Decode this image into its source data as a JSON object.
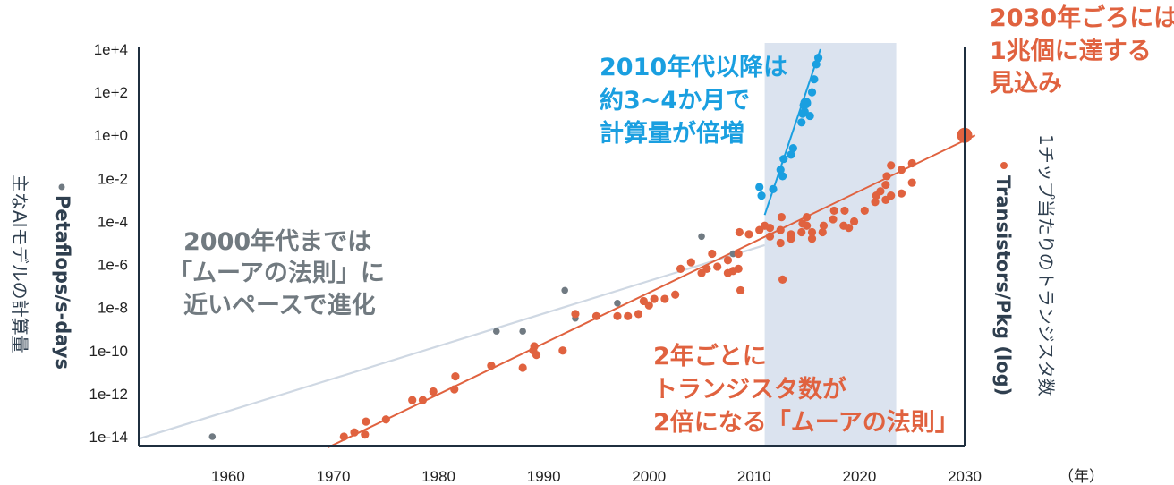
{
  "chart_data": {
    "type": "scatter",
    "x_ticks": [
      "1960",
      "1970",
      "1980",
      "1990",
      "2000",
      "2010",
      "2020",
      "2030"
    ],
    "x_unit_label": "（年）",
    "y_left_ticks": [
      "1e+4",
      "1e+2",
      "1e+0",
      "1e-2",
      "1e-4",
      "1e-6",
      "1e-8",
      "1e-10",
      "1e-12",
      "1e-14"
    ],
    "y_left_label_bold": "Petaflops/s-days",
    "y_left_label_sub": "主なAIモデルの計算量",
    "y_right_label_bold": "Transistors/Pkg (log)",
    "y_right_label_sub": "1チップ当たりのトランジスタ数",
    "xlim": [
      1951.5,
      2030
    ],
    "ylim_log10": [
      -14,
      4
    ],
    "shaded_region": [
      2011,
      2023.5
    ],
    "colors": {
      "ai": "#707a82",
      "ai_modern": "#1a9fe0",
      "transistor": "#e0623f",
      "trend_ai": "#cfd8e3",
      "shade": "#dbe3ef"
    },
    "annotations": {
      "ai_pre2000": [
        "2000年代までは",
        "「ムーアの法則」に",
        "近いペースで進化"
      ],
      "ai_post2010": [
        "2010年代以降は",
        "約3~4か月で",
        "計算量が倍増"
      ],
      "moore": [
        "2年ごとに",
        "トランジスタ数が",
        "2倍になる「ムーアの法則」"
      ],
      "forecast": [
        "2030年ごろには",
        "1兆個に達する",
        "見込み"
      ]
    },
    "trend_lines": {
      "ai_pre2010": [
        [
          1951.5,
          -14.1
        ],
        [
          2011,
          -5.1
        ]
      ],
      "ai_post2010": [
        [
          2011,
          -3.7
        ],
        [
          2016.3,
          4.0
        ]
      ],
      "moore": [
        [
          1969.5,
          -14.5
        ],
        [
          2031,
          0.0
        ]
      ]
    },
    "series": [
      {
        "name": "Petaflops/s-days",
        "points": [
          [
            1958.5,
            -14
          ],
          [
            1985.5,
            -9.1
          ],
          [
            1988,
            -9.1
          ],
          [
            1992,
            -7.2
          ],
          [
            1993,
            -8.5
          ],
          [
            1997,
            -7.8
          ],
          [
            2005,
            -4.7
          ],
          [
            2008,
            -5.5
          ]
        ]
      },
      {
        "name": "Petaflops/s-days",
        "points": [
          [
            2010.5,
            -2.4
          ],
          [
            2010.7,
            -2.8
          ],
          [
            2011.8,
            -2.5
          ],
          [
            2012.5,
            -1.6
          ],
          [
            2012.7,
            -1.9
          ],
          [
            2012.8,
            -1.1
          ],
          [
            2013.5,
            -0.9
          ],
          [
            2013.7,
            -0.6
          ],
          [
            2014.5,
            0.6
          ],
          [
            2014.6,
            1.0
          ],
          [
            2014.7,
            1.4
          ],
          [
            2014.8,
            1.1
          ],
          [
            2014.9,
            1.5
          ],
          [
            2015.3,
            0.9
          ],
          [
            2015.5,
            2.0
          ],
          [
            2015.7,
            2.6
          ],
          [
            2015.9,
            3.3
          ],
          [
            2016.1,
            3.6
          ]
        ]
      },
      {
        "name": "Transistors/Pkg (log)",
        "points": [
          [
            1971,
            -14
          ],
          [
            1972,
            -13.8
          ],
          [
            1973,
            -13.9
          ],
          [
            1973.1,
            -13.3
          ],
          [
            1975,
            -13.2
          ],
          [
            1977.5,
            -12.3
          ],
          [
            1978.5,
            -12.3
          ],
          [
            1979.5,
            -11.9
          ],
          [
            1981.5,
            -11.8
          ],
          [
            1981.6,
            -11.2
          ],
          [
            1985,
            -10.7
          ],
          [
            1988,
            -10.8
          ],
          [
            1989,
            -10
          ],
          [
            1989.1,
            -9.8
          ],
          [
            1989.3,
            -10.2
          ],
          [
            1991.8,
            -10
          ],
          [
            1993,
            -8.3
          ],
          [
            1995,
            -8.4
          ],
          [
            1997,
            -8.4
          ],
          [
            1998,
            -8.4
          ],
          [
            1999,
            -8.3
          ],
          [
            1999.5,
            -7.7
          ],
          [
            2000,
            -7.9
          ],
          [
            2000.5,
            -7.6
          ],
          [
            2001.5,
            -7.6
          ],
          [
            2002.5,
            -7.4
          ],
          [
            2003,
            -6.2
          ],
          [
            2004,
            -5.9
          ],
          [
            2005,
            -6.4
          ],
          [
            2005.5,
            -6.2
          ],
          [
            2006,
            -5.5
          ],
          [
            2006.5,
            -6.1
          ],
          [
            2007.5,
            -6.4
          ],
          [
            2007.5,
            -5.8
          ],
          [
            2008,
            -6.3
          ],
          [
            2008.5,
            -5.5
          ],
          [
            2008.5,
            -6.2
          ],
          [
            2008.6,
            -4.5
          ],
          [
            2008.7,
            -7.2
          ],
          [
            2009.5,
            -4.6
          ],
          [
            2010.5,
            -4.4
          ],
          [
            2011,
            -4.2
          ],
          [
            2011.5,
            -4.3
          ],
          [
            2011.5,
            -4.7
          ],
          [
            2012.5,
            -5
          ],
          [
            2012.5,
            -4.4
          ],
          [
            2012.6,
            -3.8
          ],
          [
            2012.7,
            -6.7
          ],
          [
            2013.5,
            -4.8
          ],
          [
            2013.5,
            -4.6
          ],
          [
            2014.5,
            -4.5
          ],
          [
            2014.6,
            -4.1
          ],
          [
            2015,
            -3.8
          ],
          [
            2015,
            -4.2
          ],
          [
            2015.5,
            -4.8
          ],
          [
            2015.5,
            -4.5
          ],
          [
            2016.5,
            -4.5
          ],
          [
            2016.6,
            -4.2
          ],
          [
            2017.5,
            -3.9
          ],
          [
            2017.6,
            -3.5
          ],
          [
            2018.5,
            -4.2
          ],
          [
            2018.6,
            -3.5
          ],
          [
            2019,
            -4.3
          ],
          [
            2019.5,
            -4
          ],
          [
            2020.5,
            -3.5
          ],
          [
            2021.5,
            -3.1
          ],
          [
            2021.6,
            -2.8
          ],
          [
            2022,
            -2.6
          ],
          [
            2022.5,
            -3
          ],
          [
            2022.5,
            -2.3
          ],
          [
            2022.6,
            -1.9
          ],
          [
            2023,
            -1.4
          ],
          [
            2023,
            -2.8
          ],
          [
            2024,
            -1.6
          ],
          [
            2024,
            -2.7
          ],
          [
            2025,
            -2.2
          ],
          [
            2025,
            -1.3
          ],
          [
            2030,
            0
          ]
        ]
      }
    ]
  }
}
